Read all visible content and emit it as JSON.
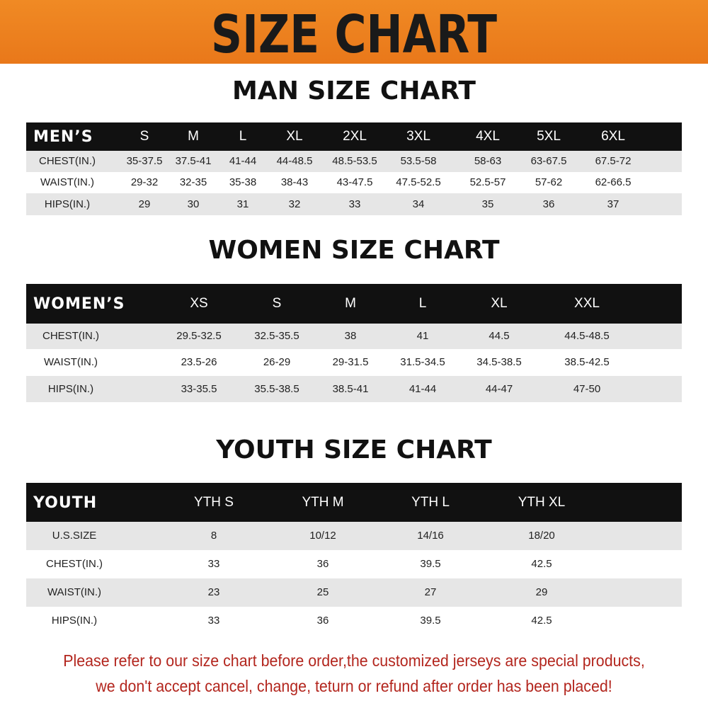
{
  "header": {
    "title": "SIZE CHART"
  },
  "tables": [
    {
      "title": "MAN SIZE CHART",
      "columns": [
        "MEN’S",
        "S",
        "M",
        "L",
        "XL",
        "2XL",
        "3XL",
        "4XL",
        "5XL",
        "6XL"
      ],
      "rows": [
        [
          "CHEST(IN.)",
          "35-37.5",
          "37.5-41",
          "41-44",
          "44-48.5",
          "48.5-53.5",
          "53.5-58",
          "58-63",
          "63-67.5",
          "67.5-72"
        ],
        [
          "WAIST(IN.)",
          "29-32",
          "32-35",
          "35-38",
          "38-43",
          "43-47.5",
          "47.5-52.5",
          "52.5-57",
          "57-62",
          "62-66.5"
        ],
        [
          "HIPS(IN.)",
          "29",
          "30",
          "31",
          "32",
          "33",
          "34",
          "35",
          "36",
          "37"
        ]
      ]
    },
    {
      "title": "WOMEN SIZE CHART",
      "columns": [
        "WOMEN’S",
        "XS",
        "S",
        "M",
        "L",
        "XL",
        "XXL"
      ],
      "rows": [
        [
          "CHEST(IN.)",
          "29.5-32.5",
          "32.5-35.5",
          "38",
          "41",
          "44.5",
          "44.5-48.5"
        ],
        [
          "WAIST(IN.)",
          "23.5-26",
          "26-29",
          "29-31.5",
          "31.5-34.5",
          "34.5-38.5",
          "38.5-42.5"
        ],
        [
          "HIPS(IN.)",
          "33-35.5",
          "35.5-38.5",
          "38.5-41",
          "41-44",
          "44-47",
          "47-50"
        ]
      ]
    },
    {
      "title": "YOUTH SIZE CHART",
      "columns": [
        "YOUTH",
        "YTH S",
        "YTH M",
        "YTH L",
        "YTH XL"
      ],
      "rows": [
        [
          "U.S.SIZE",
          "8",
          "10/12",
          "14/16",
          "18/20"
        ],
        [
          "CHEST(IN.)",
          "33",
          "36",
          "39.5",
          "42.5"
        ],
        [
          "WAIST(IN.)",
          "23",
          "25",
          "27",
          "29"
        ],
        [
          "HIPS(IN.)",
          "33",
          "36",
          "39.5",
          "42.5"
        ]
      ]
    }
  ],
  "footer": {
    "lines": [
      "Please refer to our size chart before order,the customized jerseys are special products,",
      "we don't accept cancel, change, teturn or refund after order has been placed!"
    ]
  }
}
